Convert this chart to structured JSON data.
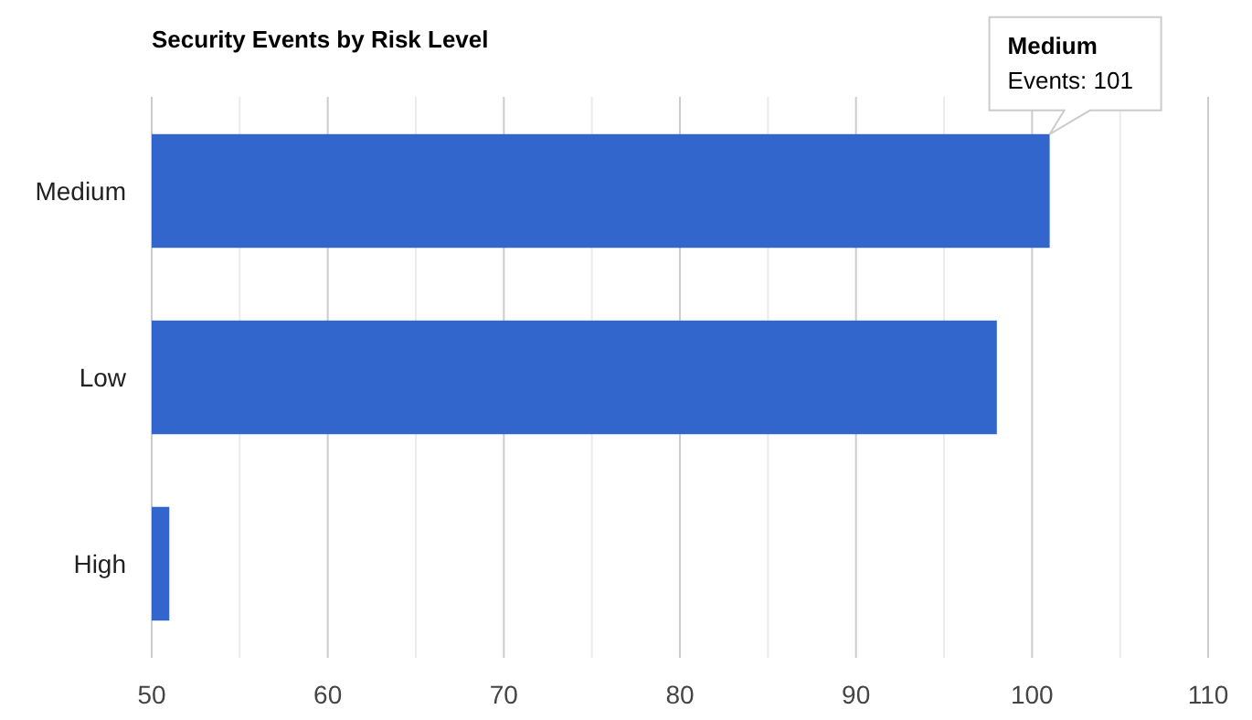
{
  "chart_data": {
    "type": "bar",
    "orientation": "horizontal",
    "title": "Security Events by Risk Level",
    "categories": [
      "Medium",
      "Low",
      "High"
    ],
    "values": [
      101,
      98,
      51
    ],
    "color": "#3366cc",
    "xlim": [
      50,
      110
    ],
    "xticks": [
      50,
      {
        "value": 55,
        "label": null
      },
      60,
      {
        "value": 65,
        "label": null
      },
      70,
      {
        "value": 75,
        "label": null
      },
      80,
      {
        "value": 85,
        "label": null
      },
      90,
      {
        "value": 95,
        "label": null
      },
      100,
      {
        "value": 105,
        "label": null
      },
      110
    ],
    "grid": true,
    "legend": false,
    "annotations": [
      "Medium\nEvents: 101"
    ]
  }
}
